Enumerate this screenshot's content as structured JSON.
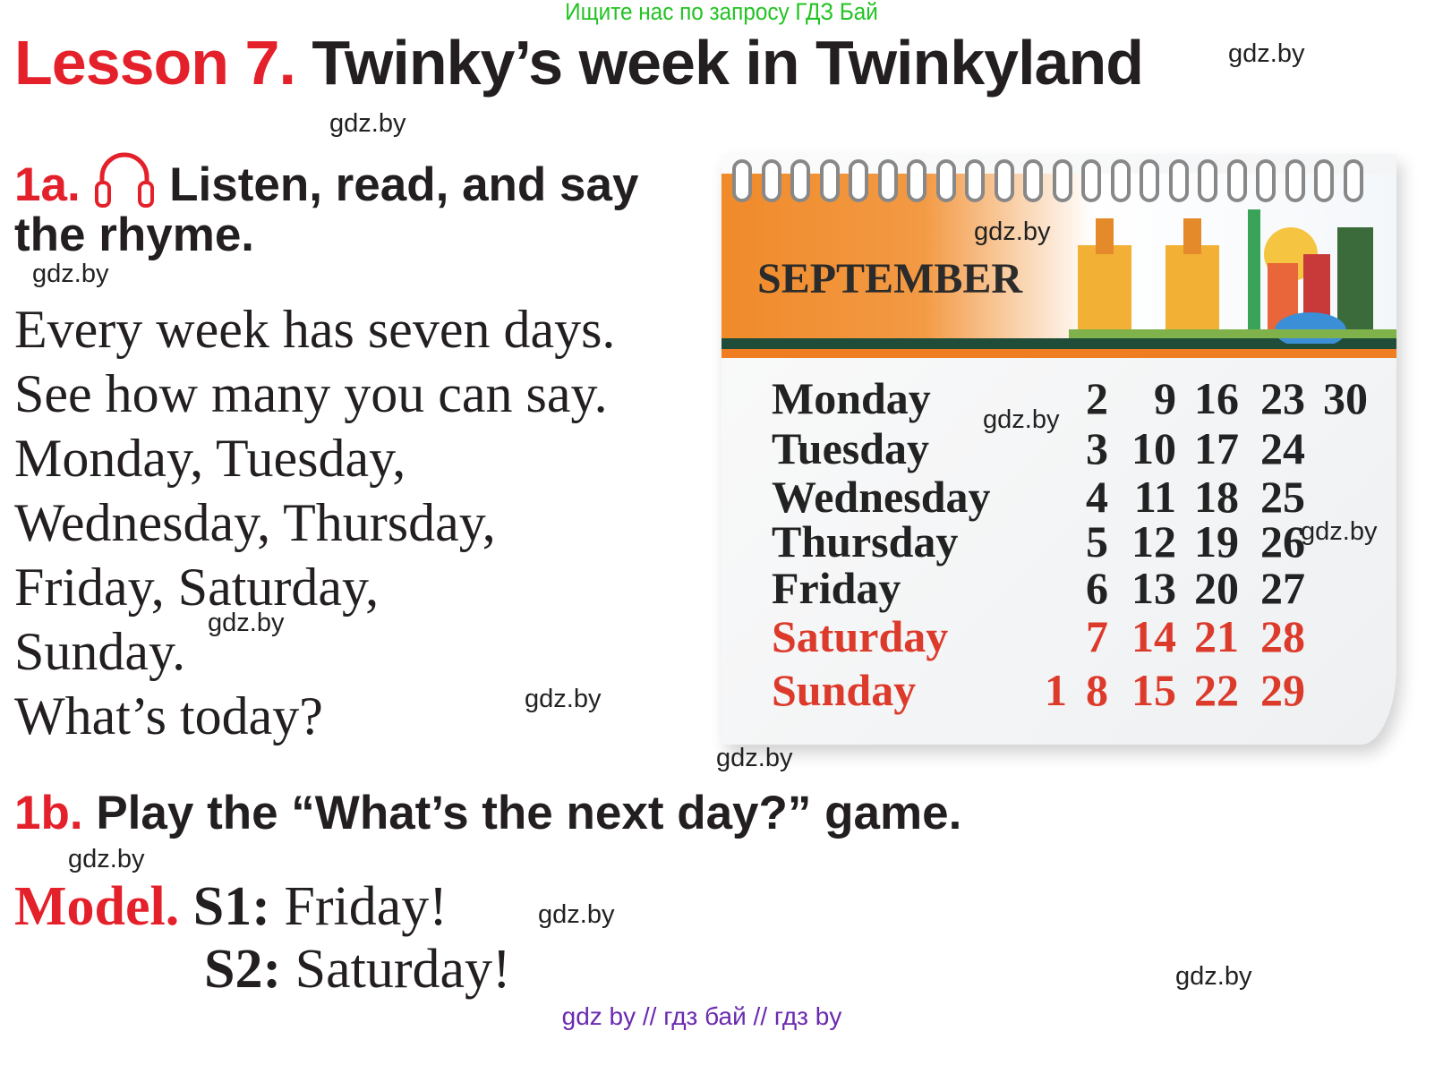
{
  "banner": "Ищите нас по запросу ГДЗ Бай",
  "title": {
    "lesson": "Lesson 7.",
    "text": "Twinky’s week in Twinkyland"
  },
  "ex1a": {
    "num": "1a.",
    "text1": "Listen, read, and say",
    "text2": "the rhyme.",
    "icon": "headphones-icon"
  },
  "rhyme": [
    "Every week has seven days.",
    "See how many you can say.",
    "Monday, Tuesday,",
    "Wednesday, Thursday,",
    "Friday, Saturday,",
    "Sunday.",
    "What’s today?"
  ],
  "calendar": {
    "month": "SEPTEMBER",
    "rows": [
      {
        "day": "Monday",
        "dates": [
          "",
          "2",
          "9",
          "16",
          "23",
          "30"
        ],
        "weekend": false
      },
      {
        "day": "Tuesday",
        "dates": [
          "",
          "3",
          "10",
          "17",
          "24",
          ""
        ],
        "weekend": false
      },
      {
        "day": "Wednesday",
        "dates": [
          "",
          "4",
          "11",
          "18",
          "25",
          ""
        ],
        "weekend": false
      },
      {
        "day": "Thursday",
        "dates": [
          "",
          "5",
          "12",
          "19",
          "26",
          ""
        ],
        "weekend": false
      },
      {
        "day": "Friday",
        "dates": [
          "",
          "6",
          "13",
          "20",
          "27",
          ""
        ],
        "weekend": false
      },
      {
        "day": "Saturday",
        "dates": [
          "",
          "7",
          "14",
          "21",
          "28",
          ""
        ],
        "weekend": true
      },
      {
        "day": "Sunday",
        "dates": [
          "1",
          "8",
          "15",
          "22",
          "29",
          ""
        ],
        "weekend": true
      }
    ]
  },
  "ex1b": {
    "num": "1b.",
    "text": "Play the “What’s the next day?” game."
  },
  "model": {
    "label": "Model.",
    "s1_label": "S1:",
    "s1": "Friday!",
    "s2_label": "S2:",
    "s2": "Saturday!"
  },
  "watermark": "gdz.by",
  "footer": "gdz by  //  гдз бай  //  гдз by",
  "colors": {
    "accent_red": "#e4202a",
    "banner_green": "#22c322",
    "footer_purple": "#6a2ab0",
    "calendar_orange": "#ef7d22"
  }
}
